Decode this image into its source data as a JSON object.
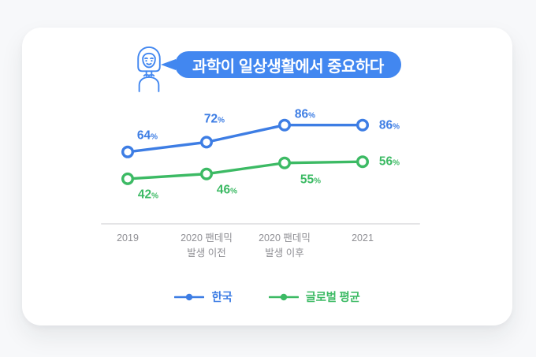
{
  "speech": {
    "text": "과학이 일상생활에서 중요하다",
    "avatar": "woman-avatar-icon"
  },
  "chart_data": {
    "type": "line",
    "title": "과학이 일상생활에서 중요하다",
    "unit": "%",
    "categories": [
      "2019",
      "2020 팬데믹\n발생 이전",
      "2020 팬데믹\n발생 이후",
      "2021"
    ],
    "series": [
      {
        "name": "한국",
        "color": "#3D7DE4",
        "values": [
          64,
          72,
          86,
          86
        ]
      },
      {
        "name": "글로벌 평균",
        "color": "#3CBA64",
        "values": [
          42,
          46,
          55,
          56
        ]
      }
    ],
    "ylim": [
      0,
      100
    ],
    "grid": false,
    "legend_position": "bottom",
    "point_style": "open-circle"
  },
  "colors": {
    "bubble": "#4287F0",
    "korea": "#3D7DE4",
    "global": "#3CBA64",
    "axis": "#E4E4E6",
    "tick_text": "#8F8F94",
    "card": "#FFFFFF",
    "page": "#F7F8FA"
  }
}
